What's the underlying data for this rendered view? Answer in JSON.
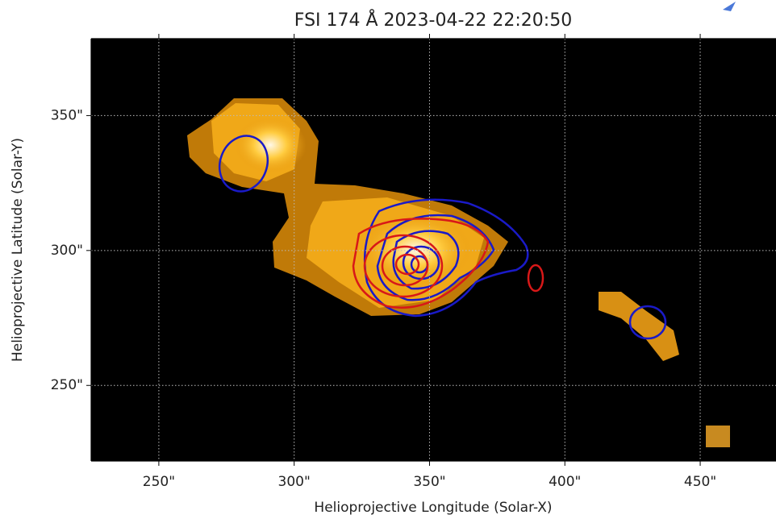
{
  "chart_data": {
    "type": "image",
    "title": "FSI 174 Å 2023-04-22 22:20:50",
    "x_label": "Helioprojective Longitude (Solar-X)",
    "y_label": "Helioprojective Latitude (Solar-Y)",
    "xlim": [
      225,
      478
    ],
    "ylim": [
      222,
      378.5
    ],
    "xticks": [
      {
        "value": 250,
        "label": "250\""
      },
      {
        "value": 300,
        "label": "300\""
      },
      {
        "value": 350,
        "label": "350\""
      },
      {
        "value": 400,
        "label": "400\""
      },
      {
        "value": 450,
        "label": "450\""
      }
    ],
    "yticks": [
      {
        "value": 250,
        "label": "250\""
      },
      {
        "value": 300,
        "label": "300\""
      },
      {
        "value": 350,
        "label": "350\""
      }
    ],
    "grid": true
  }
}
